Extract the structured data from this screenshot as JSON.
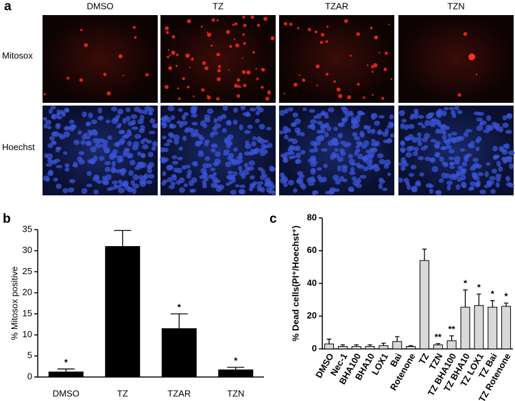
{
  "panels": {
    "a": "a",
    "b": "b",
    "c": "c"
  },
  "images": {
    "columns": [
      "DMSO",
      "TZ",
      "TZAR",
      "TZN"
    ],
    "rows": [
      "Mitosox",
      "Hoechst"
    ]
  },
  "chart_data": [
    {
      "type": "bar",
      "ylabel": "% Mitosox positive",
      "categories": [
        "DMSO",
        "TZ",
        "TZAR",
        "TZN"
      ],
      "values": [
        1.2,
        31,
        11.5,
        1.7
      ],
      "errors": [
        0.7,
        3.8,
        3.5,
        0.6
      ],
      "annotations": [
        "*",
        null,
        "*",
        "*"
      ],
      "color": "#000000",
      "ylim": [
        0,
        35
      ],
      "yticks": [
        0,
        5,
        10,
        15,
        20,
        25,
        30,
        35
      ]
    },
    {
      "type": "bar",
      "ylabel": "% Dead cells(PI⁺/Hoechst⁺)",
      "categories": [
        "DMSO",
        "Nec-1",
        "BHA100",
        "BHA10",
        "LOX1",
        "Bai",
        "Rotenone",
        "TZ",
        "TZN",
        "TZ BHA100",
        "TZ BHA10",
        "TZ LOX1",
        "TZ Bai",
        "TZ Rotenone"
      ],
      "values": [
        3,
        1.5,
        1.5,
        1.5,
        2,
        4.5,
        1.5,
        54,
        2.5,
        5,
        25.5,
        26.5,
        25.5,
        26
      ],
      "errors": [
        3,
        1,
        1,
        1,
        1.5,
        3,
        0.5,
        7,
        0.7,
        3,
        10.5,
        7,
        4,
        2
      ],
      "annotations": [
        null,
        null,
        null,
        null,
        null,
        null,
        null,
        null,
        "**",
        "**",
        "*",
        "*",
        "*",
        "*"
      ],
      "color": "#d9d9d9",
      "ylim": [
        0,
        80
      ],
      "yticks": [
        0,
        20,
        40,
        60,
        80
      ]
    }
  ]
}
